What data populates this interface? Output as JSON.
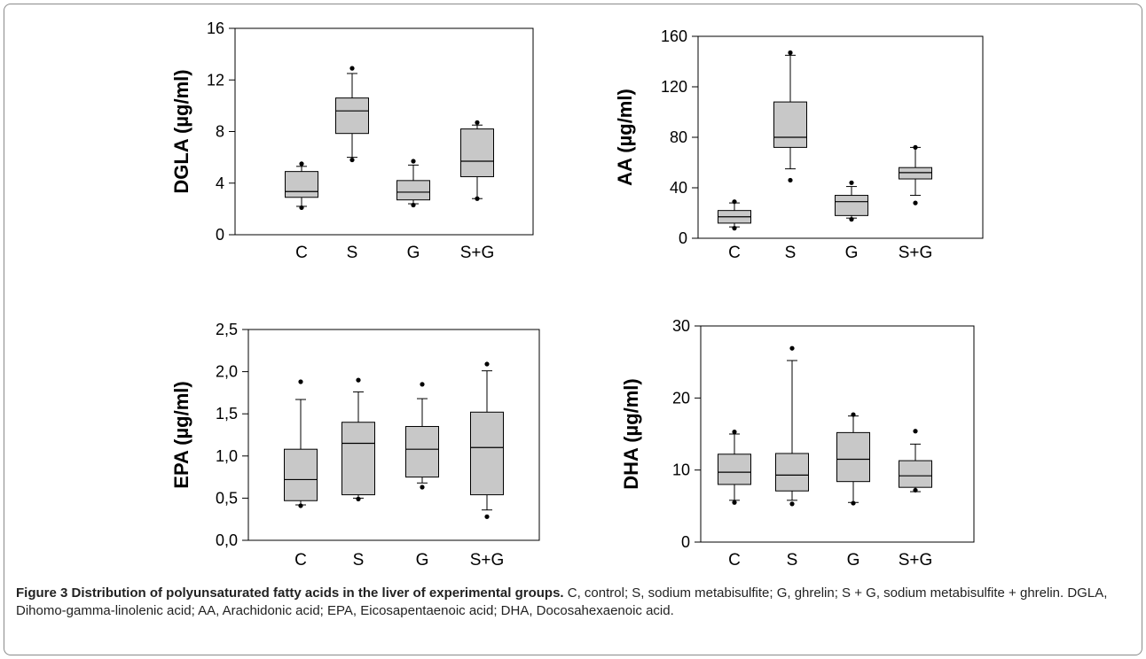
{
  "figure": {
    "caption_title": "Figure 3 Distribution of polyunsaturated fatty acids in the liver of experimental groups.",
    "caption_body": " C, control; S, sodium metabisulfite; G, ghrelin; S + G, sodium metabisulfite + ghrelin. DGLA, Dihomo-gamma-linolenic acid; AA, Arachidonic acid; EPA, Eicosapentaenoic acid; DHA, Docosahexaenoic acid."
  },
  "colors": {
    "box_fill": "#c8c8c8",
    "stroke": "#000000"
  },
  "chart_data": [
    {
      "type": "box",
      "panel": "top-left",
      "ylabel": "DGLA (µg/ml)",
      "ylim": [
        0,
        16
      ],
      "yticks": [
        "0",
        "4",
        "8",
        "12",
        "16"
      ],
      "categories": [
        "C",
        "S",
        "G",
        "S+G"
      ],
      "boxes": [
        {
          "q1": 2.9,
          "median": 3.35,
          "q3": 4.9,
          "whisker_low": 2.2,
          "whisker_high": 5.3,
          "outliers": [
            2.1,
            5.5
          ]
        },
        {
          "q1": 7.85,
          "median": 9.6,
          "q3": 10.6,
          "whisker_low": 6.0,
          "whisker_high": 12.5,
          "outliers": [
            5.8,
            12.9
          ]
        },
        {
          "q1": 2.7,
          "median": 3.3,
          "q3": 4.2,
          "whisker_low": 2.4,
          "whisker_high": 5.4,
          "outliers": [
            2.3,
            5.7
          ]
        },
        {
          "q1": 4.5,
          "median": 5.7,
          "q3": 8.2,
          "whisker_low": 2.8,
          "whisker_high": 8.5,
          "outliers": [
            2.8,
            8.7
          ]
        }
      ]
    },
    {
      "type": "box",
      "panel": "top-right",
      "ylabel": "AA (µg/ml)",
      "ylim": [
        0,
        160
      ],
      "yticks": [
        "0",
        "40",
        "80",
        "120",
        "160"
      ],
      "categories": [
        "C",
        "S",
        "G",
        "S+G"
      ],
      "boxes": [
        {
          "q1": 12,
          "median": 17,
          "q3": 22,
          "whisker_low": 9,
          "whisker_high": 28,
          "outliers": [
            8,
            29
          ]
        },
        {
          "q1": 72,
          "median": 80,
          "q3": 108,
          "whisker_low": 55,
          "whisker_high": 145,
          "outliers": [
            46,
            147
          ]
        },
        {
          "q1": 18,
          "median": 29,
          "q3": 34,
          "whisker_low": 16,
          "whisker_high": 41,
          "outliers": [
            15,
            44
          ]
        },
        {
          "q1": 47,
          "median": 52,
          "q3": 56,
          "whisker_low": 34,
          "whisker_high": 72,
          "outliers": [
            28,
            72
          ]
        }
      ]
    },
    {
      "type": "box",
      "panel": "bottom-left",
      "ylabel": "EPA (µg/ml)",
      "ylim": [
        0,
        2.5
      ],
      "yticks": [
        "0,0",
        "0,5",
        "1,0",
        "1,5",
        "2,0",
        "2,5"
      ],
      "categories": [
        "C",
        "S",
        "G",
        "S+G"
      ],
      "boxes": [
        {
          "q1": 0.47,
          "median": 0.72,
          "q3": 1.08,
          "whisker_low": 0.42,
          "whisker_high": 1.67,
          "outliers": [
            0.41,
            1.88
          ]
        },
        {
          "q1": 0.54,
          "median": 1.15,
          "q3": 1.4,
          "whisker_low": 0.5,
          "whisker_high": 1.76,
          "outliers": [
            0.49,
            1.9
          ]
        },
        {
          "q1": 0.75,
          "median": 1.08,
          "q3": 1.35,
          "whisker_low": 0.68,
          "whisker_high": 1.68,
          "outliers": [
            0.63,
            1.85
          ]
        },
        {
          "q1": 0.54,
          "median": 1.1,
          "q3": 1.52,
          "whisker_low": 0.36,
          "whisker_high": 2.01,
          "outliers": [
            0.28,
            2.09
          ]
        }
      ]
    },
    {
      "type": "box",
      "panel": "bottom-right",
      "ylabel": "DHA (µg/ml)",
      "ylim": [
        0,
        30
      ],
      "yticks": [
        "0",
        "10",
        "20",
        "30"
      ],
      "categories": [
        "C",
        "S",
        "G",
        "S+G"
      ],
      "boxes": [
        {
          "q1": 8.0,
          "median": 9.7,
          "q3": 12.2,
          "whisker_low": 5.8,
          "whisker_high": 15.0,
          "outliers": [
            5.5,
            15.3
          ]
        },
        {
          "q1": 7.1,
          "median": 9.3,
          "q3": 12.3,
          "whisker_low": 5.8,
          "whisker_high": 25.2,
          "outliers": [
            5.3,
            26.9
          ]
        },
        {
          "q1": 8.4,
          "median": 11.5,
          "q3": 15.2,
          "whisker_low": 5.5,
          "whisker_high": 17.5,
          "outliers": [
            5.4,
            17.7
          ]
        },
        {
          "q1": 7.6,
          "median": 9.2,
          "q3": 11.3,
          "whisker_low": 7.0,
          "whisker_high": 13.6,
          "outliers": [
            7.2,
            15.4
          ]
        }
      ]
    }
  ]
}
